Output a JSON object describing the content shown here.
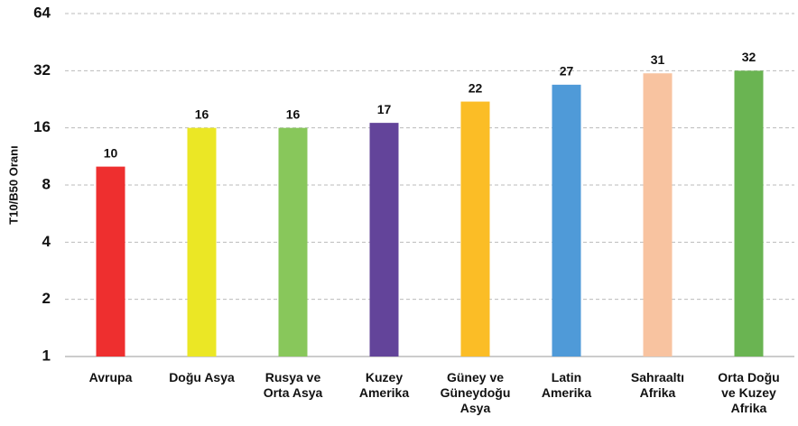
{
  "chart_data": {
    "type": "bar",
    "y_label": "T10/B50 Oranı",
    "categories": [
      "Avrupa",
      "Doğu Asya",
      "Rusya ve\nOrta Asya",
      "Kuzey\nAmerika",
      "Güney ve\nGüneydoğu\nAsya",
      "Latin\nAmerika",
      "Sahraaltı\nAfrika",
      "Orta Doğu\nve Kuzey\nAfrika"
    ],
    "values": [
      10,
      16,
      16,
      17,
      22,
      27,
      31,
      32
    ],
    "colors": [
      "#ee2f2f",
      "#ebe725",
      "#88c75b",
      "#63449a",
      "#fbbd26",
      "#4f9ad8",
      "#f8c3a0",
      "#6ab452"
    ],
    "ylim": [
      1,
      64
    ],
    "yticks": [
      1,
      2,
      4,
      8,
      16,
      32,
      64
    ],
    "log_base": 2,
    "grid": true
  }
}
